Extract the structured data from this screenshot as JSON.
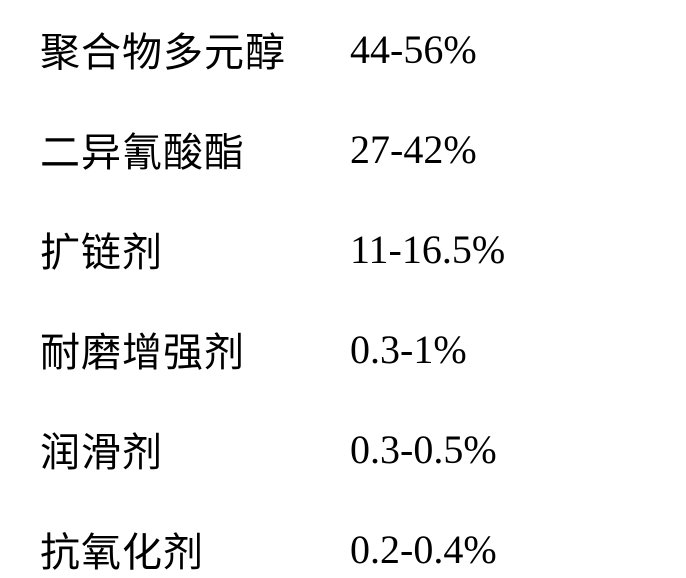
{
  "table": {
    "rows": [
      {
        "label": "聚合物多元醇",
        "value": "44-56%"
      },
      {
        "label": "二异氰酸酯",
        "value": "27-42%"
      },
      {
        "label": "扩链剂",
        "value": "11-16.5%"
      },
      {
        "label": "耐磨增强剂",
        "value": "0.3-1%"
      },
      {
        "label": "润滑剂",
        "value": "0.3-0.5%"
      },
      {
        "label": "抗氧化剂",
        "value": "0.2-0.4%"
      }
    ],
    "label_fontsize": 40,
    "value_fontsize": 40,
    "text_color": "#000000",
    "background_color": "#ffffff",
    "label_font": "SimSun",
    "value_font": "Times New Roman",
    "row_spacing": 42,
    "label_column_width": 310
  }
}
